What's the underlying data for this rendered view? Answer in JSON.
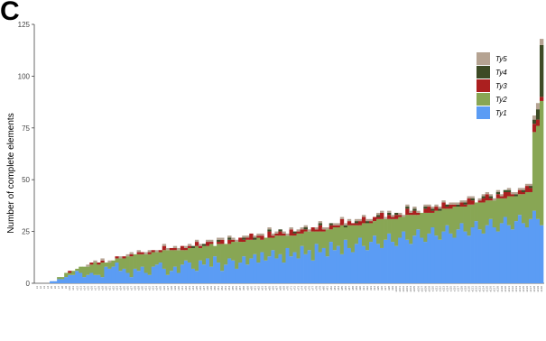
{
  "panel_label": "C",
  "colors": {
    "Ty1": "#5b9cf4",
    "Ty2": "#88a654",
    "Ty3": "#ab1f1f",
    "Ty4": "#3d4a25",
    "Ty5": "#b5a392"
  },
  "chart_data": {
    "type": "bar",
    "stacked": true,
    "ylabel": "Number of complete elements",
    "xlabel": "",
    "ylim": [
      0,
      125
    ],
    "yticks": [
      0,
      25,
      50,
      75,
      100,
      125
    ],
    "legend_position": "top-right",
    "series_order": [
      "Ty1",
      "Ty2",
      "Ty3",
      "Ty4",
      "Ty5"
    ],
    "legend_order": [
      "Ty5",
      "Ty4",
      "Ty3",
      "Ty2",
      "Ty1"
    ],
    "categories": [
      "s1",
      "s2",
      "s3",
      "s4",
      "s5",
      "s6",
      "s7",
      "s8",
      "s9",
      "s10",
      "s11",
      "s12",
      "s13",
      "s14",
      "s15",
      "s16",
      "s17",
      "s18",
      "s19",
      "s20",
      "s21",
      "s22",
      "s23",
      "s24",
      "s25",
      "s26",
      "s27",
      "s28",
      "s29",
      "s30",
      "s31",
      "s32",
      "s33",
      "s34",
      "s35",
      "s36",
      "s37",
      "s38",
      "s39",
      "s40",
      "s41",
      "s42",
      "s43",
      "s44",
      "s45",
      "s46",
      "s47",
      "s48",
      "s49",
      "s50",
      "s51",
      "s52",
      "s53",
      "s54",
      "s55",
      "s56",
      "s57",
      "s58",
      "s59",
      "s60",
      "s61",
      "s62",
      "s63",
      "s64",
      "s65",
      "s66",
      "s67",
      "s68",
      "s69",
      "s70",
      "s71",
      "s72",
      "s73",
      "s74",
      "s75",
      "s76",
      "s77",
      "s78",
      "s79",
      "s80",
      "s81",
      "s82",
      "s83",
      "s84",
      "s85",
      "s86",
      "s87",
      "s88",
      "s89",
      "s90",
      "s91",
      "s92",
      "s93",
      "s94",
      "s95",
      "s96",
      "s97",
      "s98",
      "s99",
      "s100",
      "s101",
      "s102",
      "s103",
      "s104",
      "s105",
      "s106",
      "s107",
      "s108",
      "s109",
      "s110",
      "s111",
      "s112",
      "s113",
      "s114",
      "s115",
      "s116",
      "s117",
      "s118",
      "s119",
      "s120",
      "s121",
      "s122",
      "s123",
      "s124",
      "s125",
      "s126",
      "s127",
      "s128",
      "s129",
      "s130",
      "s131",
      "s132",
      "s133",
      "s134",
      "s135",
      "s136",
      "s137",
      "s138",
      "s139",
      "s140"
    ],
    "series": [
      {
        "name": "Ty1",
        "values": [
          0,
          0,
          0,
          0,
          1,
          1,
          2,
          2,
          3,
          4,
          4,
          6,
          5,
          3,
          4,
          5,
          4,
          4,
          3,
          8,
          7,
          8,
          10,
          6,
          7,
          5,
          3,
          7,
          6,
          8,
          5,
          4,
          8,
          9,
          10,
          7,
          4,
          6,
          8,
          5,
          9,
          11,
          10,
          7,
          6,
          11,
          9,
          12,
          8,
          13,
          10,
          6,
          9,
          12,
          11,
          7,
          10,
          13,
          9,
          12,
          14,
          10,
          15,
          11,
          13,
          16,
          12,
          14,
          10,
          17,
          13,
          15,
          12,
          18,
          14,
          16,
          11,
          19,
          15,
          17,
          13,
          20,
          16,
          18,
          14,
          21,
          17,
          15,
          19,
          22,
          18,
          16,
          20,
          23,
          19,
          17,
          21,
          24,
          20,
          18,
          22,
          25,
          21,
          19,
          23,
          26,
          22,
          20,
          24,
          27,
          23,
          21,
          25,
          28,
          24,
          22,
          26,
          29,
          25,
          23,
          27,
          30,
          26,
          24,
          28,
          31,
          27,
          25,
          29,
          32,
          28,
          26,
          30,
          33,
          29,
          27,
          31,
          35,
          31,
          28
        ]
      },
      {
        "name": "Ty2",
        "values": [
          0,
          0,
          0,
          0,
          0,
          0,
          1,
          1,
          2,
          1,
          2,
          1,
          3,
          5,
          4,
          4,
          6,
          5,
          7,
          2,
          3,
          3,
          2,
          6,
          5,
          8,
          10,
          7,
          8,
          6,
          9,
          10,
          7,
          6,
          5,
          9,
          12,
          10,
          8,
          11,
          7,
          5,
          7,
          10,
          12,
          6,
          9,
          6,
          11,
          5,
          9,
          13,
          10,
          7,
          9,
          13,
          10,
          7,
          12,
          9,
          7,
          12,
          6,
          11,
          9,
          6,
          11,
          9,
          13,
          6,
          10,
          8,
          12,
          6,
          11,
          9,
          14,
          6,
          10,
          8,
          13,
          6,
          11,
          9,
          14,
          6,
          11,
          13,
          9,
          6,
          11,
          13,
          9,
          7,
          12,
          14,
          10,
          7,
          11,
          13,
          10,
          7,
          12,
          14,
          10,
          7,
          12,
          14,
          10,
          7,
          12,
          14,
          11,
          8,
          12,
          15,
          11,
          8,
          12,
          15,
          11,
          9,
          13,
          15,
          12,
          9,
          13,
          16,
          12,
          9,
          14,
          16,
          12,
          10,
          14,
          17,
          13,
          38,
          45,
          60
        ]
      },
      {
        "name": "Ty3",
        "values": [
          0,
          0,
          0,
          0,
          0,
          0,
          0,
          0,
          0,
          1,
          0,
          0,
          0,
          0,
          0,
          1,
          0,
          1,
          1,
          0,
          0,
          0,
          1,
          0,
          1,
          0,
          1,
          0,
          1,
          1,
          0,
          1,
          1,
          0,
          1,
          2,
          0,
          1,
          1,
          0,
          2,
          1,
          1,
          0,
          2,
          1,
          0,
          2,
          1,
          0,
          1,
          2,
          0,
          2,
          1,
          0,
          2,
          1,
          1,
          3,
          0,
          1,
          2,
          0,
          3,
          1,
          1,
          2,
          1,
          0,
          3,
          1,
          1,
          2,
          1,
          0,
          2,
          1,
          3,
          1,
          0,
          2,
          1,
          1,
          3,
          0,
          2,
          1,
          1,
          2,
          3,
          0,
          1,
          2,
          1,
          3,
          0,
          2,
          1,
          2,
          1,
          0,
          3,
          1,
          2,
          1,
          0,
          2,
          3,
          1,
          2,
          0,
          3,
          1,
          2,
          1,
          0,
          2,
          1,
          3,
          2,
          0,
          1,
          2,
          3,
          1,
          0,
          2,
          1,
          3,
          2,
          1,
          0,
          2,
          1,
          3,
          2,
          4,
          3,
          2
        ]
      },
      {
        "name": "Ty4",
        "values": [
          0,
          0,
          0,
          0,
          0,
          0,
          0,
          0,
          0,
          0,
          0,
          0,
          0,
          0,
          0,
          0,
          0,
          0,
          0,
          0,
          0,
          0,
          0,
          0,
          0,
          0,
          0,
          0,
          0,
          0,
          0,
          0,
          0,
          0,
          0,
          0,
          0,
          0,
          0,
          0,
          0,
          0,
          0,
          1,
          0,
          0,
          1,
          0,
          0,
          0,
          1,
          0,
          0,
          1,
          0,
          0,
          0,
          1,
          0,
          0,
          1,
          0,
          0,
          0,
          1,
          0,
          0,
          1,
          0,
          0,
          0,
          1,
          0,
          0,
          1,
          0,
          0,
          0,
          1,
          0,
          0,
          1,
          0,
          0,
          0,
          1,
          0,
          0,
          1,
          0,
          0,
          1,
          0,
          0,
          1,
          0,
          0,
          1,
          0,
          1,
          0,
          0,
          1,
          0,
          1,
          0,
          0,
          1,
          0,
          1,
          0,
          1,
          0,
          1,
          0,
          0,
          1,
          0,
          1,
          0,
          1,
          0,
          0,
          1,
          0,
          1,
          0,
          1,
          0,
          1,
          1,
          0,
          1,
          0,
          1,
          0,
          1,
          2,
          5,
          25
        ]
      },
      {
        "name": "Ty5",
        "values": [
          0,
          0,
          0,
          0,
          0,
          0,
          0,
          0,
          0,
          0,
          0,
          0,
          0,
          0,
          1,
          0,
          1,
          0,
          1,
          0,
          1,
          0,
          0,
          1,
          0,
          1,
          1,
          0,
          1,
          0,
          1,
          1,
          0,
          1,
          0,
          1,
          1,
          0,
          1,
          1,
          0,
          1,
          1,
          0,
          1,
          1,
          0,
          1,
          1,
          0,
          1,
          1,
          0,
          1,
          1,
          1,
          0,
          1,
          1,
          0,
          1,
          1,
          1,
          0,
          1,
          1,
          1,
          0,
          1,
          1,
          1,
          0,
          1,
          1,
          1,
          1,
          0,
          1,
          1,
          1,
          1,
          0,
          1,
          1,
          1,
          1,
          1,
          0,
          1,
          1,
          1,
          1,
          1,
          0,
          1,
          1,
          1,
          1,
          1,
          0,
          1,
          1,
          1,
          1,
          1,
          1,
          0,
          1,
          1,
          1,
          1,
          1,
          1,
          0,
          1,
          1,
          1,
          1,
          1,
          1,
          1,
          0,
          1,
          1,
          1,
          1,
          1,
          1,
          1,
          0,
          1,
          1,
          1,
          1,
          1,
          1,
          1,
          2,
          3,
          3
        ]
      }
    ]
  }
}
